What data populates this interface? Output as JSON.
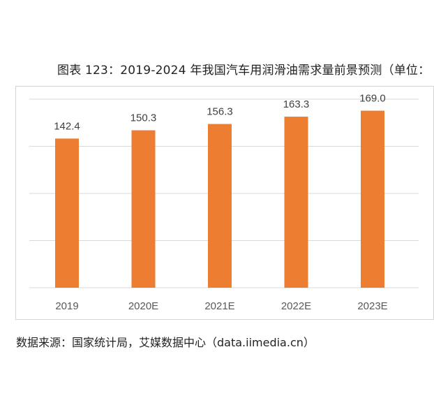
{
  "chart_data": {
    "type": "bar",
    "title": "图表 123：2019-2024 年我国汽车用润滑油需求量前景预测（单位：",
    "categories": [
      "2019",
      "2020E",
      "2021E",
      "2022E",
      "2023E"
    ],
    "values": [
      142.4,
      150.3,
      156.3,
      163.3,
      169.0
    ],
    "value_labels": [
      "142.4",
      "150.3",
      "156.3",
      "163.3",
      "169.0"
    ],
    "xlabel": "",
    "ylabel": "",
    "ylim": [
      0,
      180
    ],
    "grid": true,
    "bar_color": "#ed7d31",
    "grid_color": "#d9d9d9"
  },
  "source": "数据来源：国家统计局，艾媒数据中心（data.iimedia.cn）"
}
